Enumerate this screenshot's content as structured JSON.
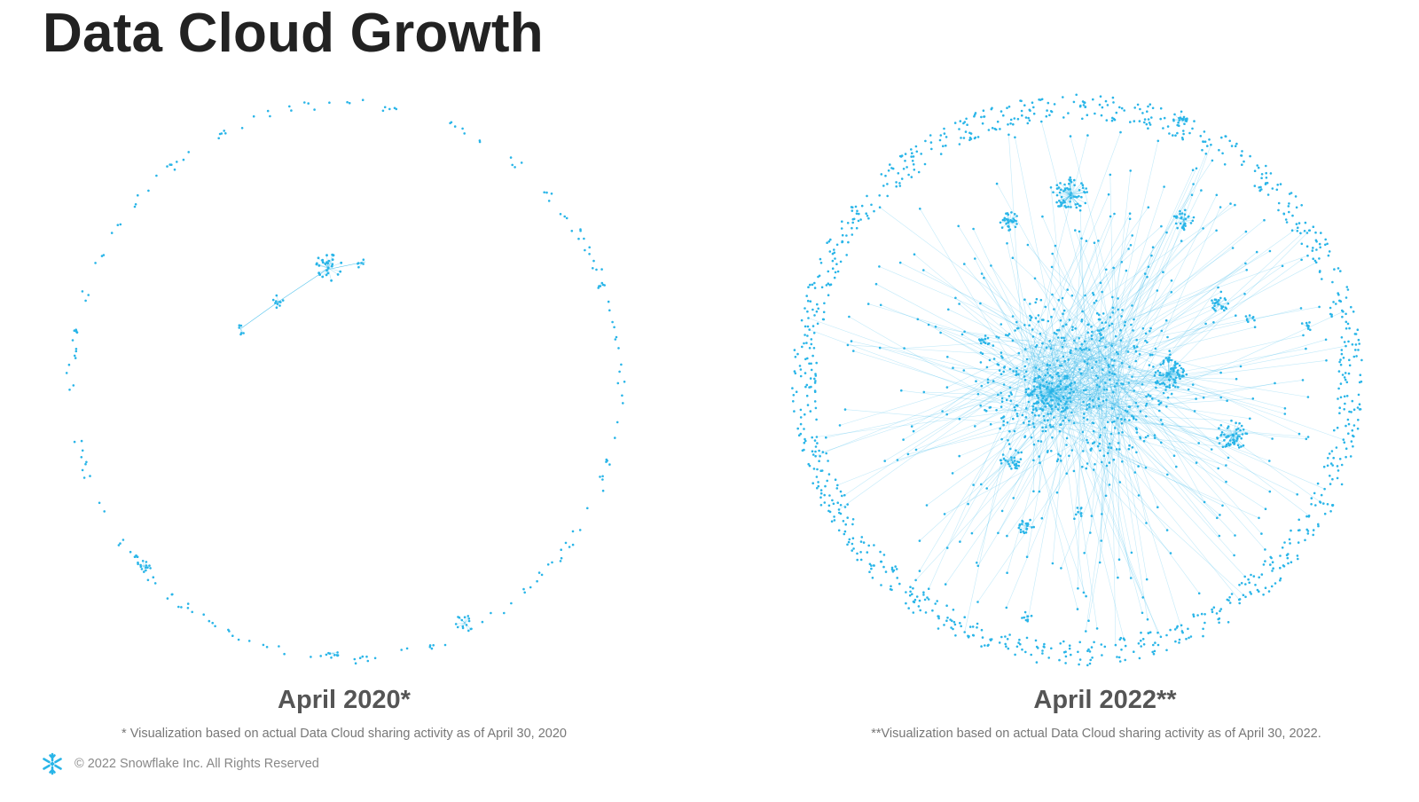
{
  "title": "Data Cloud Growth",
  "accent_color": "#29b5e8",
  "networks": [
    {
      "label": "April 2020*",
      "footnote": "* Visualization based on actual Data Cloud sharing activity as of April 30, 2020",
      "density": "sparse"
    },
    {
      "label": "April 2022**",
      "footnote": "**Visualization based on actual Data Cloud sharing activity as of April 30, 2022.",
      "density": "dense"
    }
  ],
  "footer": {
    "logo_icon": "snowflake-icon",
    "copyright": "© 2022 Snowflake Inc. All Rights Reserved"
  }
}
